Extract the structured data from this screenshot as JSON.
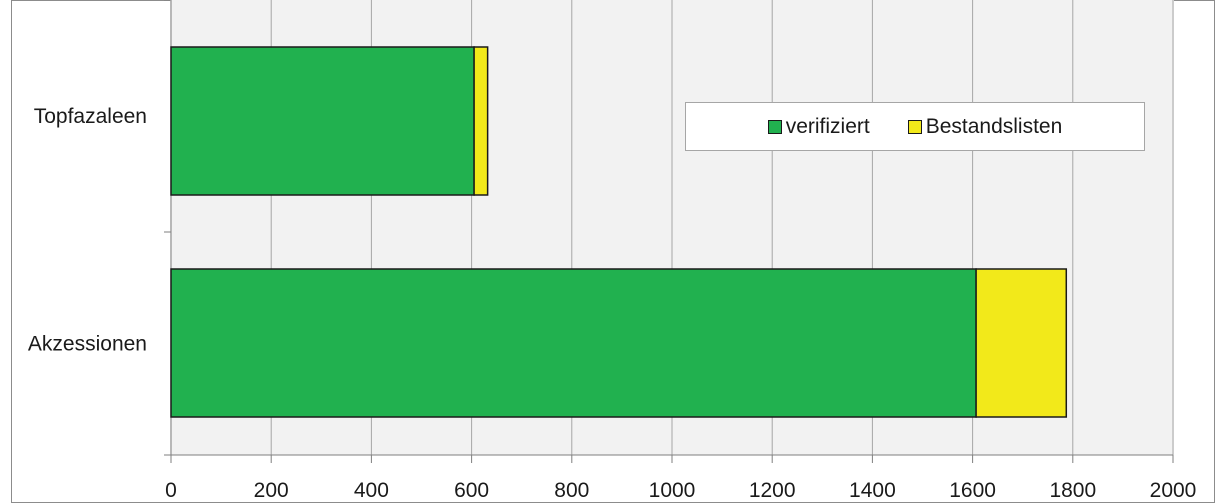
{
  "chart_data": {
    "type": "bar",
    "orientation": "horizontal",
    "stacked": true,
    "categories": [
      "Topfazaleen",
      "Akzessionen"
    ],
    "series": [
      {
        "name": "verifiziert",
        "values": [
          605,
          1607
        ],
        "color": "#21b14f"
      },
      {
        "name": "Bestandslisten",
        "values": [
          27,
          180
        ],
        "color": "#f2e91a"
      }
    ],
    "xlim": [
      0,
      2000
    ],
    "xticks": [
      "0",
      "200",
      "400",
      "600",
      "800",
      "1000",
      "1200",
      "1400",
      "1600",
      "1800",
      "2000"
    ],
    "grid": "vertical",
    "legend_position": "top-right"
  }
}
